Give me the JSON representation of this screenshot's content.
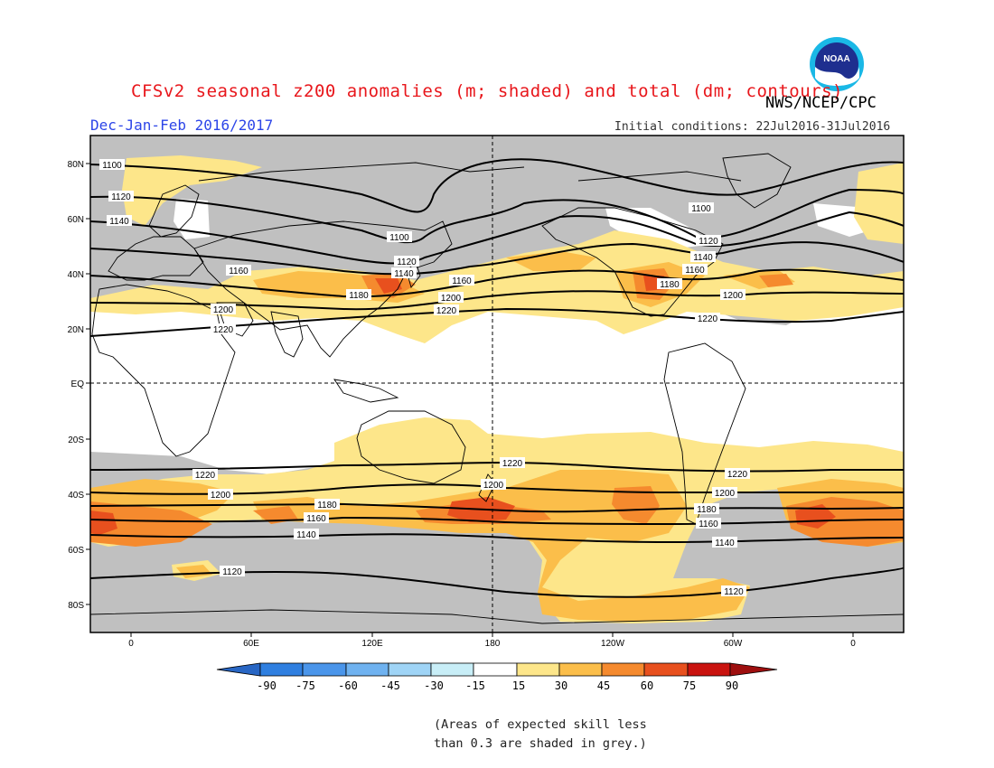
{
  "header": {
    "title": "CFSv2 seasonal z200 anomalies (m; shaded) and total (dm; contours)",
    "subtitle": "Dec-Jan-Feb 2016/2017",
    "agency": "NWS/NCEP/CPC",
    "initial_conditions": "Initial conditions: 22Jul2016-31Jul2016",
    "logo_text": "NOAA"
  },
  "map": {
    "lat_labels": [
      "80N",
      "60N",
      "40N",
      "20N",
      "EQ",
      "20S",
      "40S",
      "60S",
      "80S"
    ],
    "lon_labels": [
      "0",
      "60E",
      "120E",
      "180",
      "120W",
      "60W",
      "0"
    ],
    "contour_labels": [
      "1100",
      "1120",
      "1140",
      "1160",
      "1180",
      "1200",
      "1220"
    ],
    "colors": {
      "grey_low_skill": "#c0c0c0",
      "light_yellow": "#fde68a",
      "yellow_orange": "#fbbe4a",
      "orange": "#f58a2e",
      "red_orange": "#e8501e",
      "contour": "#000000",
      "background": "#ffffff"
    }
  },
  "colorbar": {
    "ticks": [
      "-90",
      "-75",
      "-60",
      "-45",
      "-30",
      "-15",
      "15",
      "30",
      "45",
      "60",
      "75",
      "90"
    ],
    "colors": [
      "#2866c4",
      "#2f7fe0",
      "#4a95ea",
      "#6fb2f0",
      "#9fd4f6",
      "#c8eef7",
      "#ffffff",
      "#fde68a",
      "#fbbe4a",
      "#f58a2e",
      "#e8501e",
      "#c9130f",
      "#9e0f0f"
    ]
  },
  "footnote": {
    "line1": "(Areas of expected skill less",
    "line2": "than 0.3 are shaded in grey.)"
  }
}
